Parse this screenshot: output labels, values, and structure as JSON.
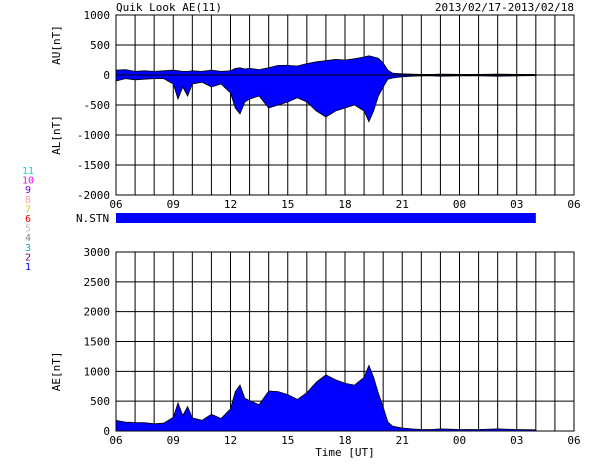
{
  "header": {
    "title": "Quik Look AE(11)",
    "date_range": "2013/02/17-2013/02/18"
  },
  "x_tick_labels": [
    "06",
    "09",
    "12",
    "15",
    "18",
    "21",
    "00",
    "03",
    "06"
  ],
  "x_axis_label": "Time [UT]",
  "station_count_label": "N.STN",
  "station_levels": [
    "11",
    "10",
    "9",
    "8",
    "7",
    "6",
    "5",
    "4",
    "3",
    "2",
    "1"
  ],
  "colors": {
    "fill": "#0000ff",
    "line": "#000000",
    "grid": "#000000",
    "station_levels": [
      "#00e0e0",
      "#ff00ff",
      "#8000ff",
      "#ffa0a0",
      "#d4d400",
      "#ff0000",
      "#c0c0c0",
      "#808080",
      "#00b0b0",
      "#800080",
      "#0000ff"
    ]
  },
  "chart_data": [
    {
      "type": "area",
      "name": "AU/AL",
      "ylabel_upper": "AU[nT]",
      "ylabel_lower": "AL[nT]",
      "ylim": [
        -2000,
        1000
      ],
      "yticks": [
        1000,
        500,
        0,
        -500,
        -1000,
        -1500,
        -2000
      ],
      "xlim": [
        0,
        24
      ],
      "x_hours_since_06UT": [
        0,
        0.5,
        1,
        1.5,
        2,
        2.5,
        3,
        3.25,
        3.5,
        3.75,
        4,
        4.5,
        5,
        5.5,
        6,
        6.25,
        6.5,
        6.75,
        7,
        7.5,
        8,
        8.5,
        9,
        9.5,
        10,
        10.5,
        11,
        11.5,
        12,
        12.5,
        13,
        13.25,
        13.5,
        13.75,
        14,
        14.25,
        14.5,
        14.75,
        15,
        15.5,
        16,
        16.5,
        17,
        18,
        19,
        20,
        21,
        22
      ],
      "AU": [
        80,
        90,
        60,
        70,
        60,
        70,
        80,
        70,
        60,
        60,
        70,
        60,
        80,
        60,
        70,
        110,
        120,
        100,
        110,
        90,
        120,
        160,
        160,
        150,
        190,
        220,
        240,
        260,
        250,
        270,
        300,
        320,
        300,
        280,
        200,
        80,
        30,
        25,
        20,
        15,
        10,
        10,
        15,
        10,
        10,
        15,
        10,
        10
      ],
      "AL": [
        -100,
        -60,
        -80,
        -70,
        -60,
        -60,
        -150,
        -400,
        -200,
        -350,
        -150,
        -120,
        -200,
        -150,
        -300,
        -550,
        -650,
        -450,
        -400,
        -350,
        -550,
        -500,
        -450,
        -380,
        -450,
        -600,
        -700,
        -600,
        -550,
        -500,
        -600,
        -780,
        -600,
        -350,
        -200,
        -70,
        -50,
        -40,
        -30,
        -20,
        -15,
        -15,
        -20,
        -15,
        -15,
        -20,
        -15,
        -10
      ]
    },
    {
      "type": "area",
      "name": "AE",
      "ylabel": "AE[nT]",
      "ylim": [
        0,
        3000
      ],
      "yticks": [
        3000,
        2500,
        2000,
        1500,
        1000,
        500,
        0
      ],
      "xlim": [
        0,
        24
      ],
      "x_hours_since_06UT": [
        0,
        0.5,
        1,
        1.5,
        2,
        2.5,
        3,
        3.25,
        3.5,
        3.75,
        4,
        4.5,
        5,
        5.5,
        6,
        6.25,
        6.5,
        6.75,
        7,
        7.5,
        8,
        8.5,
        9,
        9.5,
        10,
        10.5,
        11,
        11.5,
        12,
        12.5,
        13,
        13.25,
        13.5,
        13.75,
        14,
        14.25,
        14.5,
        14.75,
        15,
        15.5,
        16,
        16.5,
        17,
        18,
        19,
        20,
        21,
        22
      ],
      "values": [
        180,
        150,
        140,
        140,
        120,
        130,
        230,
        470,
        260,
        410,
        220,
        180,
        280,
        210,
        370,
        660,
        770,
        550,
        510,
        440,
        670,
        660,
        610,
        530,
        640,
        820,
        940,
        860,
        800,
        770,
        900,
        1100,
        900,
        630,
        400,
        150,
        80,
        65,
        50,
        35,
        25,
        25,
        35,
        25,
        25,
        35,
        25,
        20
      ]
    }
  ],
  "station_bar": {
    "x_start_hours": 0,
    "x_end_hours": 22
  }
}
